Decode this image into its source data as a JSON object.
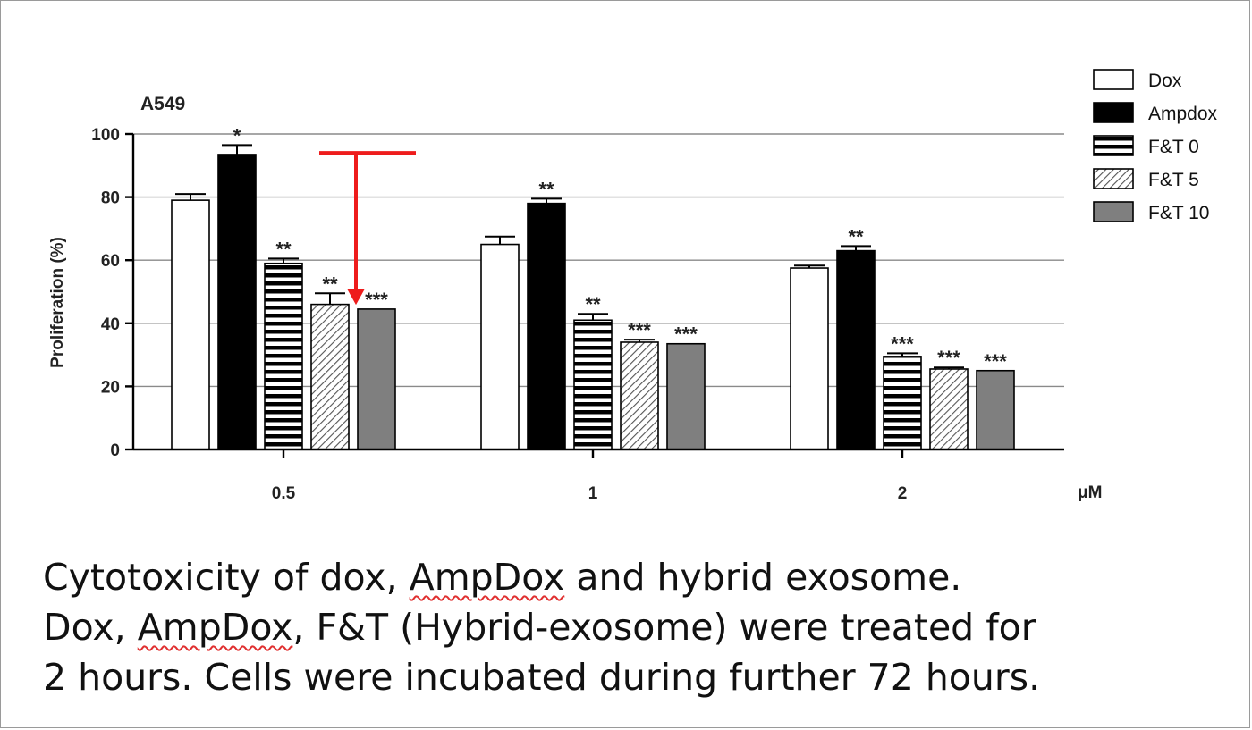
{
  "chart_data": {
    "type": "bar",
    "panel_label": "A549",
    "ylabel": "Proliferation (%)",
    "xunit": "μM",
    "ylim": [
      0,
      100
    ],
    "yticks": [
      0,
      20,
      40,
      60,
      80,
      100
    ],
    "grid": true,
    "legend_position": "top-right",
    "categories": [
      "0.5",
      "1",
      "2"
    ],
    "series": [
      {
        "name": "Dox",
        "pattern": "open",
        "values": [
          79,
          65,
          57.5
        ],
        "errors": [
          2,
          2.5,
          0.8
        ],
        "significance": [
          "",
          "",
          ""
        ]
      },
      {
        "name": "Ampdox",
        "pattern": "solid-black",
        "values": [
          93.5,
          78,
          63
        ],
        "errors": [
          3,
          1.5,
          1.5
        ],
        "significance": [
          "*",
          "**",
          "**"
        ]
      },
      {
        "name": "F&T 0",
        "pattern": "horizontal-stripes",
        "values": [
          59,
          41,
          29.5
        ],
        "errors": [
          1.5,
          2,
          1
        ],
        "significance": [
          "**",
          "**",
          "***"
        ]
      },
      {
        "name": "F&T 5",
        "pattern": "diagonal-hatch",
        "values": [
          46,
          34,
          25.5
        ],
        "errors": [
          3.5,
          0.8,
          0.5
        ],
        "significance": [
          "**",
          "***",
          "***"
        ]
      },
      {
        "name": "F&T 10",
        "pattern": "solid-gray",
        "values": [
          44.5,
          33.5,
          25
        ],
        "errors": [
          0,
          0,
          0
        ],
        "significance": [
          "***",
          "***",
          "***"
        ]
      }
    ],
    "annotation": {
      "type": "arrow",
      "color": "#ee1c1c",
      "from_y": 94,
      "to_y": 47,
      "category_index": 0
    }
  },
  "caption": {
    "line1": [
      {
        "text": "Cytotoxicity of dox, ",
        "squiggle": false
      },
      {
        "text": "AmpDox",
        "squiggle": true
      },
      {
        "text": " and hybrid exosome.",
        "squiggle": false
      }
    ],
    "line2": [
      {
        "text": "Dox, ",
        "squiggle": false
      },
      {
        "text": "AmpDox",
        "squiggle": true
      },
      {
        "text": ", F&T (Hybrid-exosome) were treated for",
        "squiggle": false
      }
    ],
    "line3": [
      {
        "text": "2 hours. Cells were incubated during further 72 hours.",
        "squiggle": false
      }
    ]
  }
}
